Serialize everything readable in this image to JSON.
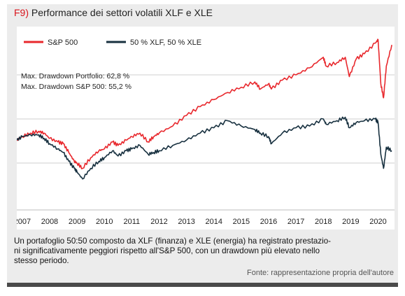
{
  "figure": {
    "number": "F9)",
    "title": "Performance dei settori volatili XLF e XLE",
    "caption": "Un portafoglio 50:50 composto da XLF (finanza) e XLE (energia) ha registrato prestazioni significativamente peggiori rispetto all'S&P 500, con un drawdown più elevato nello stesso periodo.",
    "caption_lines": [
      "Un portafoglio 50:50 composto da XLF (finanza) e XLE (energia) ha registrato prestazio-",
      "ni significativamente peggiori rispetto all'S&P 500, con un drawdown più elevato nello",
      "stesso periodo."
    ],
    "source": "Fonte: rappresentazione propria dell'autore"
  },
  "chart_data": {
    "type": "line",
    "title": "Performance dei settori volatili XLF e XLE",
    "x_tick_labels": [
      "2007",
      "2008",
      "2009",
      "2010",
      "2011",
      "2012",
      "2013",
      "2014",
      "2015",
      "2016",
      "2017",
      "2018",
      "2019",
      "2020"
    ],
    "xlim": [
      2006.8,
      2020.6
    ],
    "ylim": [
      0,
      100
    ],
    "y_note": "relative scale, no y-axis labels shown",
    "grid": "horizontal",
    "legend_position": "top-left",
    "annotations": [
      "Max. Drawdown Portfolio: 62,8 %",
      "Max. Drawdown S&P 500: 55,2 %"
    ],
    "series": [
      {
        "name": "S&P 500",
        "color": "#e8282d",
        "x": [
          2006.8,
          2007.0,
          2007.3,
          2007.6,
          2007.8,
          2008.0,
          2008.3,
          2008.5,
          2008.7,
          2008.9,
          2009.0,
          2009.2,
          2009.5,
          2009.8,
          2010.0,
          2010.3,
          2010.5,
          2010.8,
          2011.0,
          2011.3,
          2011.6,
          2011.8,
          2012.0,
          2012.5,
          2013.0,
          2013.5,
          2014.0,
          2014.5,
          2015.0,
          2015.5,
          2015.7,
          2016.0,
          2016.1,
          2016.5,
          2017.0,
          2017.5,
          2018.0,
          2018.1,
          2018.5,
          2018.8,
          2018.95,
          2019.2,
          2019.5,
          2019.9,
          2020.0,
          2020.1,
          2020.2,
          2020.3,
          2020.5
        ],
        "values": [
          38,
          40,
          42,
          43,
          42,
          39,
          37,
          36,
          31,
          26,
          25,
          22,
          28,
          32,
          33,
          37,
          35,
          38,
          40,
          42,
          37,
          40,
          42,
          46,
          52,
          57,
          61,
          65,
          68,
          71,
          67,
          70,
          67,
          72,
          75,
          79,
          85,
          80,
          82,
          85,
          74,
          84,
          87,
          93,
          95,
          70,
          62,
          80,
          92
        ]
      },
      {
        "name": "50 % XLF, 50 % XLE",
        "color": "#17303f",
        "x": [
          2006.8,
          2007.0,
          2007.3,
          2007.6,
          2007.8,
          2008.0,
          2008.3,
          2008.5,
          2008.7,
          2008.9,
          2009.0,
          2009.2,
          2009.5,
          2009.8,
          2010.0,
          2010.3,
          2010.5,
          2010.8,
          2011.0,
          2011.3,
          2011.6,
          2011.8,
          2012.0,
          2012.5,
          2013.0,
          2013.5,
          2014.0,
          2014.5,
          2015.0,
          2015.5,
          2015.7,
          2016.0,
          2016.1,
          2016.5,
          2017.0,
          2017.5,
          2018.0,
          2018.1,
          2018.5,
          2018.8,
          2018.95,
          2019.2,
          2019.5,
          2019.9,
          2020.0,
          2020.1,
          2020.2,
          2020.3,
          2020.5
        ],
        "values": [
          38,
          40,
          41,
          41,
          39,
          36,
          33,
          31,
          26,
          22,
          20,
          16,
          22,
          26,
          28,
          32,
          29,
          32,
          33,
          35,
          30,
          31,
          32,
          35,
          38,
          42,
          45,
          49,
          46,
          44,
          42,
          40,
          36,
          42,
          45,
          46,
          50,
          47,
          49,
          51,
          45,
          48,
          49,
          50,
          48,
          30,
          22,
          34,
          32
        ]
      }
    ]
  }
}
